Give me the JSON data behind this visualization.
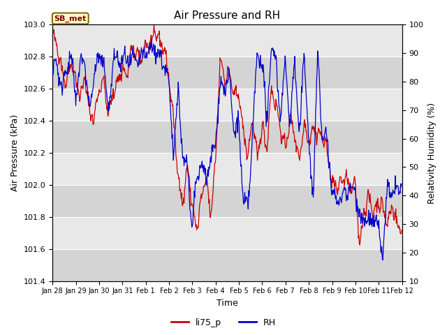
{
  "title": "Air Pressure and RH",
  "xlabel": "Time",
  "ylabel_left": "Air Pressure (kPa)",
  "ylabel_right": "Relativity Humidity (%)",
  "ylim_left": [
    101.4,
    103.0
  ],
  "ylim_right": [
    10,
    100
  ],
  "yticks_left": [
    101.4,
    101.6,
    101.8,
    102.0,
    102.2,
    102.4,
    102.6,
    102.8,
    103.0
  ],
  "yticks_right": [
    10,
    20,
    30,
    40,
    50,
    60,
    70,
    80,
    90,
    100
  ],
  "xtick_labels": [
    "Jan 28",
    "Jan 29",
    "Jan 30",
    "Jan 31",
    "Feb 1",
    "Feb 2",
    "Feb 3",
    "Feb 4",
    "Feb 5",
    "Feb 6",
    "Feb 7",
    "Feb 8",
    "Feb 9",
    "Feb 10",
    "Feb 11",
    "Feb 12"
  ],
  "color_pressure": "#cc0000",
  "color_rh": "#0000cc",
  "legend_labels": [
    "li75_p",
    "RH"
  ],
  "annotation_text": "SB_met",
  "annotation_color": "#800000",
  "annotation_bg": "#ffffcc",
  "annotation_border": "#886600",
  "bg_color_light": "#e8e8e8",
  "bg_color_dark": "#d4d4d4",
  "title_fontsize": 11,
  "axis_fontsize": 9,
  "tick_fontsize": 8,
  "legend_fontsize": 9,
  "pressure_knots_t": [
    0.0,
    0.013,
    0.027,
    0.04,
    0.053,
    0.067,
    0.08,
    0.093,
    0.107,
    0.12,
    0.133,
    0.147,
    0.16,
    0.173,
    0.187,
    0.2,
    0.213,
    0.227,
    0.24,
    0.253,
    0.267,
    0.28,
    0.293,
    0.307,
    0.32,
    0.333,
    0.347,
    0.36,
    0.373,
    0.387,
    0.4,
    0.413,
    0.427,
    0.44,
    0.453,
    0.467,
    0.48,
    0.493,
    0.507,
    0.52,
    0.533,
    0.547,
    0.56,
    0.573,
    0.587,
    0.6,
    0.613,
    0.627,
    0.64,
    0.653,
    0.667,
    0.68,
    0.693,
    0.707,
    0.72,
    0.733,
    0.747,
    0.76,
    0.773,
    0.787,
    0.8,
    0.813,
    0.827,
    0.84,
    0.853,
    0.867,
    0.88,
    0.893,
    0.907,
    0.92,
    0.933,
    0.947,
    0.96,
    0.973,
    0.987,
    1.0
  ],
  "pressure_knots_v": [
    102.93,
    102.87,
    102.72,
    102.63,
    102.78,
    102.65,
    102.55,
    102.67,
    102.44,
    102.42,
    102.6,
    102.65,
    102.43,
    102.57,
    102.65,
    102.72,
    102.68,
    102.85,
    102.82,
    102.78,
    102.88,
    102.87,
    102.95,
    102.9,
    102.85,
    102.68,
    102.4,
    102.05,
    101.88,
    102.12,
    101.87,
    101.72,
    101.92,
    102.05,
    101.8,
    102.15,
    102.8,
    102.65,
    102.7,
    102.55,
    102.58,
    102.32,
    102.18,
    102.42,
    102.15,
    102.38,
    102.22,
    102.6,
    102.5,
    102.35,
    102.22,
    102.42,
    102.32,
    102.15,
    102.38,
    102.28,
    102.35,
    102.32,
    102.3,
    102.22,
    102.02,
    101.98,
    102.02,
    102.05,
    101.97,
    102.0,
    101.62,
    101.85,
    101.92,
    101.82,
    101.9,
    101.85,
    101.75,
    101.88,
    101.75,
    101.72
  ],
  "rh_knots_t": [
    0.0,
    0.013,
    0.027,
    0.04,
    0.053,
    0.067,
    0.08,
    0.093,
    0.107,
    0.12,
    0.133,
    0.147,
    0.16,
    0.173,
    0.187,
    0.2,
    0.213,
    0.227,
    0.24,
    0.253,
    0.267,
    0.28,
    0.293,
    0.307,
    0.32,
    0.333,
    0.347,
    0.36,
    0.373,
    0.387,
    0.4,
    0.413,
    0.427,
    0.44,
    0.453,
    0.467,
    0.48,
    0.493,
    0.507,
    0.52,
    0.533,
    0.547,
    0.56,
    0.573,
    0.587,
    0.6,
    0.613,
    0.627,
    0.64,
    0.653,
    0.667,
    0.68,
    0.693,
    0.707,
    0.72,
    0.733,
    0.747,
    0.76,
    0.773,
    0.787,
    0.8,
    0.813,
    0.827,
    0.84,
    0.853,
    0.867,
    0.88,
    0.893,
    0.907,
    0.92,
    0.933,
    0.947,
    0.96,
    0.973,
    0.987,
    1.0
  ],
  "rh_knots_v": [
    84,
    87,
    76,
    86,
    88,
    74,
    87,
    87,
    68,
    85,
    87,
    88,
    68,
    87,
    88,
    87,
    88,
    87,
    87,
    88,
    90,
    91,
    92,
    88,
    87,
    78,
    55,
    78,
    54,
    49,
    27,
    47,
    50,
    47,
    51,
    60,
    78,
    79,
    80,
    63,
    65,
    38,
    35,
    62,
    90,
    88,
    66,
    90,
    90,
    65,
    90,
    62,
    90,
    58,
    92,
    60,
    40,
    92,
    58,
    62,
    40,
    39,
    38,
    43,
    41,
    43,
    32,
    33,
    30,
    32,
    28,
    20,
    43,
    40,
    43,
    43
  ]
}
